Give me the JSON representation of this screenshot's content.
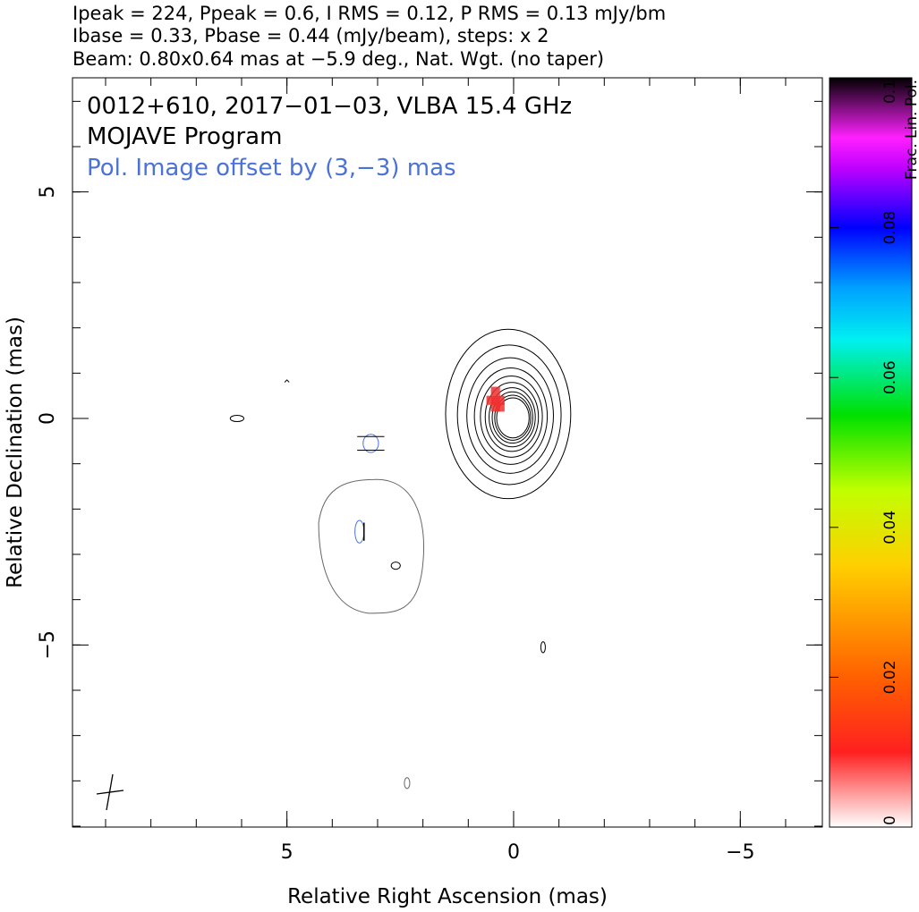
{
  "chart_data": {
    "type": "contour",
    "header": [
      "Ipeak = 224, Ppeak = 0.6, I RMS = 0.12, P RMS = 0.13 mJy/bm",
      "Ibase = 0.33, Pbase = 0.44 (mJy/beam), steps: x 2",
      "Beam: 0.80x0.64 mas at −5.9 deg., Nat. Wgt. (no taper)"
    ],
    "annotations": [
      "0012+610, 2017−01−03, VLBA 15.4 GHz",
      "MOJAVE Program",
      "Pol. Image offset by (3,−3) mas"
    ],
    "xlabel": "Relative Right Ascension (mas)",
    "ylabel": "Relative Declination (mas)",
    "xlim": [
      9.73,
      -6.81
    ],
    "ylim": [
      -9.02,
      7.52
    ],
    "xticks": [
      5,
      0,
      {
        "value": -5,
        "label": "−5"
      }
    ],
    "yticks": [
      {
        "value": -5,
        "label": "−5"
      },
      0,
      5
    ],
    "colorbar": {
      "label": "Frac. Lin. Pol.",
      "lim": [
        0,
        0.1
      ],
      "ticks": [
        0,
        0.02,
        0.04,
        0.06,
        0.08,
        0.1
      ]
    }
  }
}
